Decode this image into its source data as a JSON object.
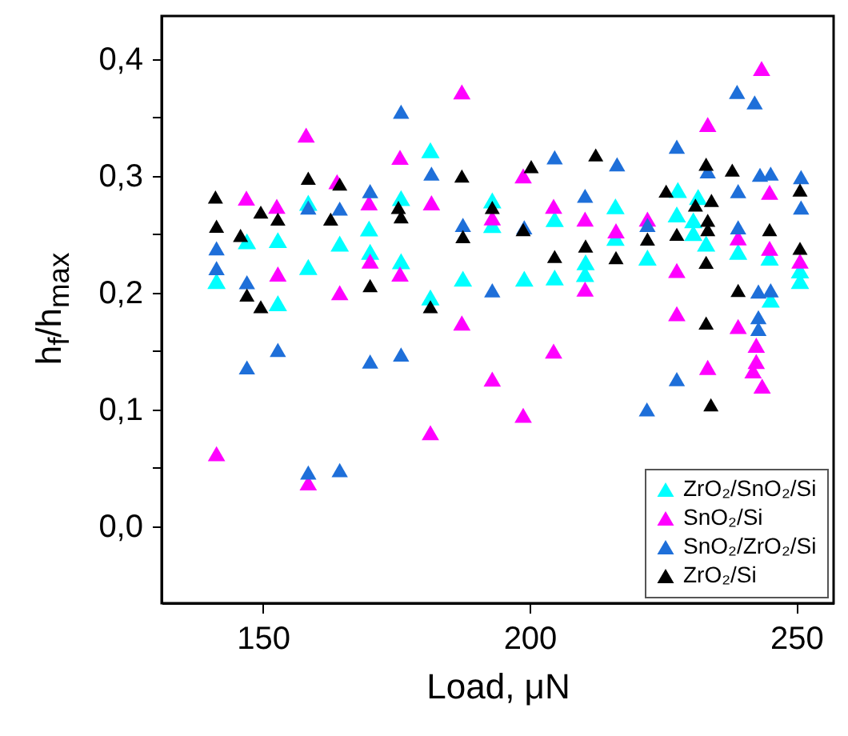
{
  "chart_data": {
    "type": "scatter",
    "xlabel": "Load, μN",
    "ylabel": "h$_{f}$/h$_{max}$",
    "xlim": [
      131,
      257
    ],
    "xticks": [
      150,
      200,
      250
    ],
    "ylim": [
      -0.066,
      0.437
    ],
    "yticks": [
      {
        "value": 0,
        "label": "0,0"
      },
      {
        "value": 0.05,
        "label": null
      },
      {
        "value": 0.1,
        "label": "0,1"
      },
      {
        "value": 0.15,
        "label": null
      },
      {
        "value": 0.2,
        "label": "0,2"
      },
      {
        "value": 0.25,
        "label": null
      },
      {
        "value": 0.3,
        "label": "0,3"
      },
      {
        "value": 0.35,
        "label": null
      },
      {
        "value": 0.4,
        "label": "0,4"
      }
    ],
    "grid": false,
    "legend": "bottom right",
    "marker": "triangle",
    "series": [
      {
        "name": "ZrO₂/SnO₂/Si",
        "color": "#00ffff",
        "x": [
          141.3,
          147.0,
          152.8,
          152.8,
          158.5,
          158.5,
          164.4,
          169.9,
          170.1,
          175.9,
          175.9,
          181.4,
          193.0,
          193.0,
          187.5,
          199.0,
          204.7,
          204.7,
          210.5,
          210.4,
          216.1,
          216.1,
          181.4,
          222.1,
          227.8,
          227.6,
          231.6,
          230.7,
          230.7,
          233.1,
          239.1,
          245.0,
          245.2,
          250.7,
          250.7
        ],
        "values": [
          0.21,
          0.244,
          0.245,
          0.191,
          0.277,
          0.222,
          0.242,
          0.255,
          0.235,
          0.281,
          0.227,
          0.322,
          0.279,
          0.258,
          0.212,
          0.212,
          0.263,
          0.213,
          0.226,
          0.216,
          0.274,
          0.247,
          0.196,
          0.23,
          0.288,
          0.267,
          0.282,
          0.262,
          0.251,
          0.242,
          0.235,
          0.23,
          0.194,
          0.219,
          0.21
        ]
      },
      {
        "name": "SnO₂/Si",
        "color": "#ff00ff",
        "x": [
          146.9,
          152.6,
          152.8,
          158.1,
          163.9,
          164.4,
          169.9,
          170.1,
          175.7,
          175.7,
          141.3,
          158.5,
          187.3,
          181.6,
          193.0,
          198.8,
          204.5,
          210.4,
          216.2,
          187.3,
          204.5,
          193.0,
          198.8,
          181.4,
          210.4,
          243.5,
          233.4,
          245.0,
          222.1,
          239.1,
          245.0,
          250.7,
          227.6,
          227.6,
          239.1,
          242.5,
          242.5,
          241.9,
          243.6,
          233.4
        ],
        "values": [
          0.281,
          0.274,
          0.216,
          0.335,
          0.295,
          0.2,
          0.277,
          0.227,
          0.316,
          0.216,
          0.062,
          0.037,
          0.372,
          0.277,
          0.264,
          0.3,
          0.274,
          0.263,
          0.253,
          0.174,
          0.15,
          0.126,
          0.095,
          0.08,
          0.203,
          0.392,
          0.344,
          0.286,
          0.263,
          0.247,
          0.238,
          0.227,
          0.219,
          0.182,
          0.171,
          0.155,
          0.141,
          0.133,
          0.12,
          0.136
        ]
      },
      {
        "name": "SnO₂/ZrO₂/Si",
        "color": "#1e6fd9",
        "x": [
          141.3,
          141.3,
          147.0,
          147.0,
          152.8,
          158.5,
          164.4,
          170.1,
          170.1,
          175.9,
          175.9,
          158.5,
          164.4,
          181.6,
          187.5,
          193.0,
          199.0,
          204.7,
          210.4,
          216.4,
          238.9,
          242.2,
          227.6,
          233.4,
          243.2,
          245.2,
          250.9,
          250.9,
          239.1,
          222.1,
          239.1,
          242.9,
          245.2,
          242.9,
          242.9,
          227.6,
          222.0
        ],
        "values": [
          0.238,
          0.221,
          0.209,
          0.136,
          0.151,
          0.273,
          0.272,
          0.287,
          0.141,
          0.147,
          0.355,
          0.046,
          0.048,
          0.302,
          0.258,
          0.202,
          0.256,
          0.316,
          0.283,
          0.31,
          0.372,
          0.363,
          0.325,
          0.304,
          0.301,
          0.302,
          0.299,
          0.273,
          0.287,
          0.258,
          0.256,
          0.201,
          0.202,
          0.179,
          0.169,
          0.126,
          0.1
        ]
      },
      {
        "name": "ZrO₂/Si",
        "color": "#000000",
        "x": [
          141.1,
          141.3,
          145.8,
          149.6,
          152.8,
          147.0,
          149.6,
          158.5,
          164.4,
          162.7,
          170.1,
          175.4,
          175.9,
          187.3,
          193.0,
          187.5,
          198.8,
          200.3,
          212.4,
          204.7,
          210.5,
          216.2,
          181.4,
          233.1,
          238.0,
          250.7,
          225.6,
          231.1,
          234.1,
          233.4,
          233.4,
          227.6,
          222.1,
          233.1,
          245.0,
          250.7,
          239.1,
          233.1,
          234.0
        ],
        "values": [
          0.282,
          0.257,
          0.249,
          0.269,
          0.263,
          0.198,
          0.188,
          0.298,
          0.293,
          0.263,
          0.206,
          0.273,
          0.265,
          0.3,
          0.273,
          0.248,
          0.254,
          0.308,
          0.318,
          0.231,
          0.24,
          0.23,
          0.188,
          0.31,
          0.305,
          0.288,
          0.287,
          0.275,
          0.279,
          0.262,
          0.254,
          0.25,
          0.246,
          0.226,
          0.254,
          0.238,
          0.202,
          0.174,
          0.104
        ]
      }
    ]
  }
}
